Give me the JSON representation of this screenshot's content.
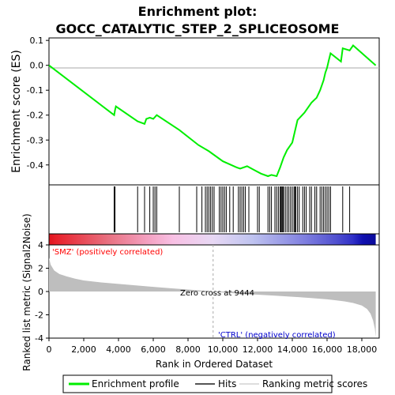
{
  "title_line1": "Enrichment plot:",
  "title_line2": "GOCC_CATALYTIC_STEP_2_SPLICEOSOME",
  "colors": {
    "es_line": "#00ee00",
    "hits": "#000000",
    "metric_fill": "#bebebe",
    "pos_label": "#ff0000",
    "neg_label": "#0000cc",
    "zero_line": "#aaaaaa"
  },
  "chart_data": [
    {
      "type": "line",
      "panel": "enrichment-score",
      "ylabel": "Enrichment score (ES)",
      "xlim": [
        0,
        19000
      ],
      "ylim": [
        -0.48,
        0.11
      ],
      "y_ticks": [
        0.1,
        0.0,
        -0.1,
        -0.2,
        -0.3,
        -0.4
      ],
      "y_tick_labels": [
        "0.1",
        "0.0",
        "-0.1",
        "-0.2",
        "-0.3",
        "-0.4"
      ],
      "grid": false,
      "series": [
        {
          "name": "Enrichment profile",
          "x": [
            0,
            3750,
            3800,
            3850,
            5100,
            5500,
            5600,
            5800,
            6000,
            6200,
            7500,
            8600,
            9200,
            10000,
            10800,
            11000,
            11400,
            11800,
            12200,
            12600,
            12800,
            13100,
            13300,
            13500,
            13700,
            14000,
            14300,
            14500,
            14700,
            14900,
            15100,
            15400,
            15600,
            15800,
            15900,
            16000,
            16100,
            16200,
            16800,
            16900,
            17300,
            17500,
            18800
          ],
          "y": [
            0.0,
            -0.2,
            -0.18,
            -0.165,
            -0.225,
            -0.235,
            -0.215,
            -0.21,
            -0.215,
            -0.2,
            -0.26,
            -0.32,
            -0.345,
            -0.385,
            -0.41,
            -0.415,
            -0.405,
            -0.42,
            -0.435,
            -0.445,
            -0.44,
            -0.445,
            -0.41,
            -0.37,
            -0.34,
            -0.31,
            -0.22,
            -0.205,
            -0.19,
            -0.17,
            -0.15,
            -0.13,
            -0.1,
            -0.06,
            -0.03,
            -0.01,
            0.02,
            0.048,
            0.015,
            0.068,
            0.06,
            0.08,
            0.0
          ]
        }
      ]
    },
    {
      "type": "hits",
      "panel": "hits",
      "series_name": "Hits",
      "positions": [
        3750,
        3800,
        5100,
        5500,
        5800,
        6000,
        6100,
        6200,
        7500,
        8500,
        8800,
        9000,
        9100,
        9200,
        9300,
        9400,
        9500,
        9800,
        9900,
        10000,
        10100,
        10200,
        10400,
        10600,
        10900,
        11000,
        11100,
        11200,
        11300,
        11500,
        12000,
        12100,
        12600,
        12700,
        12800,
        13000,
        13100,
        13200,
        13300,
        13350,
        13400,
        13450,
        13500,
        13600,
        13700,
        13800,
        13900,
        14000,
        14100,
        14150,
        14200,
        14300,
        14400,
        14600,
        14700,
        14800,
        15000,
        15100,
        15300,
        15400,
        15600,
        15700,
        15800,
        15900,
        16000,
        16100,
        16200,
        16900,
        17300
      ]
    },
    {
      "type": "heatmap",
      "panel": "ranking-bar",
      "description_colors": [
        "#e8202a",
        "#f4a0b8",
        "#f4c0e0",
        "#d0d0f4",
        "#8080e0",
        "#2020c0"
      ]
    },
    {
      "type": "area",
      "panel": "ranked-metric",
      "series_name": "Ranking metric scores",
      "ylabel": "Ranked list metric (Signal2Noise)",
      "xlabel": "Rank in Ordered Dataset",
      "xlim": [
        0,
        19000
      ],
      "ylim": [
        -4,
        4
      ],
      "x_ticks": [
        0,
        2000,
        4000,
        6000,
        8000,
        10000,
        12000,
        14000,
        16000,
        18000
      ],
      "x_tick_labels": [
        "0",
        "2,000",
        "4,000",
        "6,000",
        "8,000",
        "10,000",
        "12,000",
        "14,000",
        "16,000",
        "18,000"
      ],
      "y_ticks": [
        4,
        2,
        0,
        -2,
        -4
      ],
      "y_tick_labels": [
        "4",
        "2",
        "0",
        "-2",
        "-4"
      ],
      "x": [
        0,
        100,
        300,
        600,
        1000,
        1500,
        2000,
        3000,
        4000,
        5000,
        6000,
        7000,
        8000,
        9000,
        9444,
        10000,
        11000,
        12000,
        13000,
        14000,
        15000,
        16000,
        16500,
        17000,
        17500,
        18000,
        18300,
        18500,
        18650,
        18750,
        18800
      ],
      "y": [
        2.9,
        2.3,
        1.8,
        1.5,
        1.3,
        1.1,
        0.95,
        0.78,
        0.65,
        0.52,
        0.4,
        0.28,
        0.17,
        0.06,
        0.0,
        -0.08,
        -0.18,
        -0.27,
        -0.36,
        -0.45,
        -0.55,
        -0.67,
        -0.75,
        -0.85,
        -0.98,
        -1.2,
        -1.5,
        -1.9,
        -2.5,
        -3.2,
        -3.9
      ],
      "zero_cross": 9444,
      "annotations": {
        "pos": "'SMZ' (positively correlated)",
        "zero": "Zero cross at 9444",
        "neg": "'CTRL' (negatively correlated)"
      }
    }
  ],
  "legend": {
    "items": [
      {
        "label": "Enrichment profile",
        "kind": "es"
      },
      {
        "label": "Hits",
        "kind": "hits"
      },
      {
        "label": "Ranking metric scores",
        "kind": "metric"
      }
    ]
  }
}
